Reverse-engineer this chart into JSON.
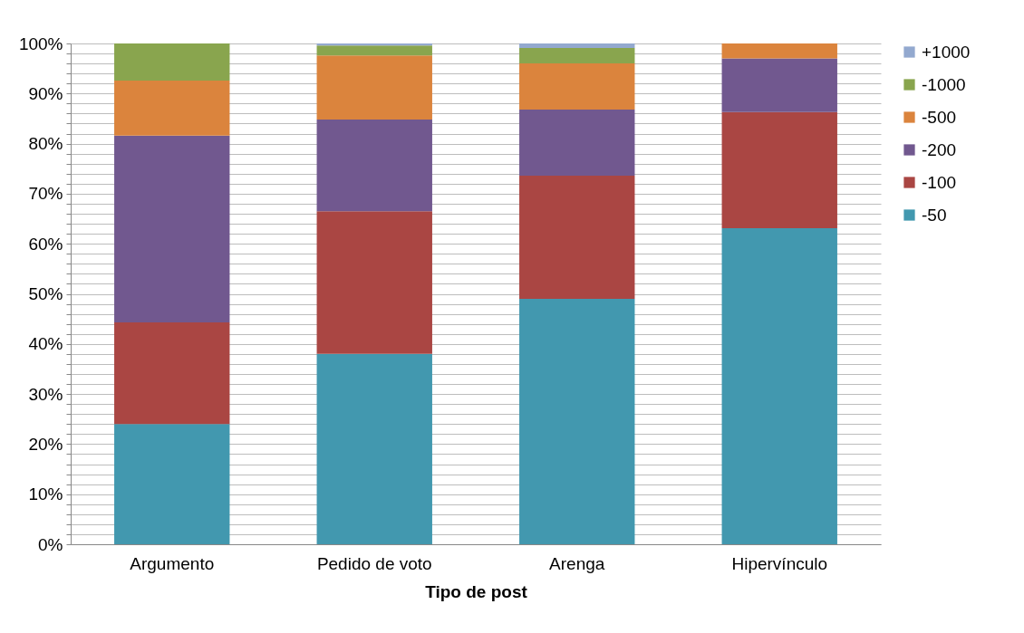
{
  "chart_data": {
    "type": "bar",
    "stacked": true,
    "xlabel": "Tipo de post",
    "categories": [
      "Argumento",
      "Pedido de voto",
      "Arenga",
      "Hipervínculo"
    ],
    "series": [
      {
        "name": "-50",
        "color": "#4298af",
        "values": [
          24.0,
          38.0,
          49.0,
          63.1
        ]
      },
      {
        "name": "-100",
        "color": "#aa4643",
        "values": [
          20.3,
          28.5,
          24.6,
          23.2
        ]
      },
      {
        "name": "-200",
        "color": "#71588f",
        "values": [
          37.3,
          18.3,
          13.2,
          10.7
        ]
      },
      {
        "name": "-500",
        "color": "#db843d",
        "values": [
          11.0,
          12.8,
          9.2,
          3.0
        ]
      },
      {
        "name": "-1000",
        "color": "#89a54e",
        "values": [
          7.4,
          2.0,
          3.1,
          0
        ]
      },
      {
        "name": "+1000",
        "color": "#93a9cf",
        "values": [
          0,
          0.4,
          0.9,
          0
        ]
      }
    ],
    "ylim": [
      0,
      100
    ],
    "yticks": [
      {
        "value": 0,
        "label": "0%"
      },
      {
        "value": 2,
        "label": null
      },
      {
        "value": 4,
        "label": null
      },
      {
        "value": 6,
        "label": null
      },
      {
        "value": 8,
        "label": null
      },
      {
        "value": 10,
        "label": "10%"
      },
      {
        "value": 12,
        "label": null
      },
      {
        "value": 14,
        "label": null
      },
      {
        "value": 16,
        "label": null
      },
      {
        "value": 18,
        "label": null
      },
      {
        "value": 20,
        "label": "20%"
      },
      {
        "value": 22,
        "label": null
      },
      {
        "value": 24,
        "label": null
      },
      {
        "value": 26,
        "label": null
      },
      {
        "value": 28,
        "label": null
      },
      {
        "value": 30,
        "label": "30%"
      },
      {
        "value": 32,
        "label": null
      },
      {
        "value": 34,
        "label": null
      },
      {
        "value": 36,
        "label": null
      },
      {
        "value": 38,
        "label": null
      },
      {
        "value": 40,
        "label": "40%"
      },
      {
        "value": 42,
        "label": null
      },
      {
        "value": 44,
        "label": null
      },
      {
        "value": 46,
        "label": null
      },
      {
        "value": 48,
        "label": null
      },
      {
        "value": 50,
        "label": "50%"
      },
      {
        "value": 52,
        "label": null
      },
      {
        "value": 54,
        "label": null
      },
      {
        "value": 56,
        "label": null
      },
      {
        "value": 58,
        "label": null
      },
      {
        "value": 60,
        "label": "60%"
      },
      {
        "value": 62,
        "label": null
      },
      {
        "value": 64,
        "label": null
      },
      {
        "value": 66,
        "label": null
      },
      {
        "value": 68,
        "label": null
      },
      {
        "value": 70,
        "label": "70%"
      },
      {
        "value": 72,
        "label": null
      },
      {
        "value": 74,
        "label": null
      },
      {
        "value": 76,
        "label": null
      },
      {
        "value": 78,
        "label": null
      },
      {
        "value": 80,
        "label": "80%"
      },
      {
        "value": 82,
        "label": null
      },
      {
        "value": 84,
        "label": null
      },
      {
        "value": 86,
        "label": null
      },
      {
        "value": 88,
        "label": null
      },
      {
        "value": 90,
        "label": "90%"
      },
      {
        "value": 92,
        "label": null
      },
      {
        "value": 94,
        "label": null
      },
      {
        "value": 96,
        "label": null
      },
      {
        "value": 98,
        "label": null
      },
      {
        "value": 100,
        "label": "100%"
      }
    ],
    "grid": "y",
    "legend": "right"
  }
}
